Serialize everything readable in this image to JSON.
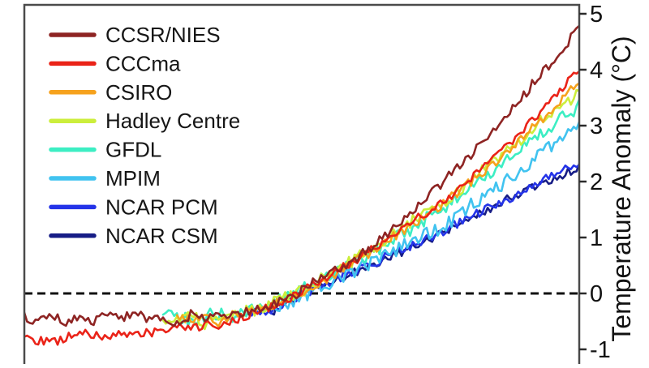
{
  "chart": {
    "background": "#ffffff",
    "frame_color": "#4a4a4a",
    "zero_line_color": "#111111",
    "text_color": "#111111"
  },
  "chart_data": {
    "type": "line",
    "title": "",
    "xlabel": "",
    "ylabel": "Temperature Anomaly (°C)",
    "x_unit": "year",
    "x_range": [
      1900,
      2100
    ],
    "ylim": [
      -1.3,
      5.16
    ],
    "y_ticks": [
      5,
      4,
      3,
      2,
      1,
      0,
      -1
    ],
    "grid": false,
    "zero_line": {
      "style": "dashed",
      "y": 0
    },
    "legend_position": "top-left",
    "point_interval_years": 5,
    "series": [
      {
        "name": "CCSR/NIES",
        "color": "#8E2423",
        "start_year": 1900,
        "end_year": 2100,
        "seed": 7,
        "noise_amplitude": 0.09,
        "values": [
          -0.42,
          -0.52,
          -0.38,
          -0.55,
          -0.42,
          -0.5,
          -0.35,
          -0.48,
          -0.32,
          -0.45,
          -0.4,
          -0.52,
          -0.38,
          -0.45,
          -0.35,
          -0.42,
          -0.3,
          -0.28,
          -0.18,
          -0.1,
          0.05,
          0.22,
          0.38,
          0.5,
          0.65,
          0.82,
          1.05,
          1.25,
          1.5,
          1.72,
          1.95,
          2.2,
          2.45,
          2.68,
          2.95,
          3.25,
          3.55,
          3.85,
          4.15,
          4.45,
          4.75
        ]
      },
      {
        "name": "CCCma",
        "color": "#EA2318",
        "start_year": 1900,
        "end_year": 2100,
        "seed": 13,
        "noise_amplitude": 0.08,
        "values": [
          -0.72,
          -0.85,
          -0.88,
          -0.8,
          -0.7,
          -0.72,
          -0.78,
          -0.7,
          -0.75,
          -0.68,
          -0.72,
          -0.6,
          -0.65,
          -0.55,
          -0.6,
          -0.5,
          -0.4,
          -0.32,
          -0.22,
          -0.12,
          0.02,
          0.18,
          0.32,
          0.48,
          0.62,
          0.78,
          0.95,
          1.12,
          1.28,
          1.45,
          1.6,
          1.8,
          2.0,
          2.22,
          2.45,
          2.7,
          2.95,
          3.2,
          3.48,
          3.75,
          4.0
        ]
      },
      {
        "name": "CSIRO",
        "color": "#F6A21D",
        "start_year": 1955,
        "end_year": 2100,
        "seed": 3,
        "noise_amplitude": 0.09,
        "values": [
          -0.42,
          -0.48,
          -0.42,
          -0.5,
          -0.4,
          -0.35,
          -0.28,
          -0.2,
          -0.1,
          0.0,
          0.15,
          0.3,
          0.45,
          0.6,
          0.75,
          0.9,
          1.08,
          1.25,
          1.42,
          1.58,
          1.75,
          1.95,
          2.15,
          2.35,
          2.58,
          2.8,
          3.05,
          3.3,
          3.55,
          3.8
        ]
      },
      {
        "name": "Hadley Centre",
        "color": "#CCEE3C",
        "start_year": 1950,
        "end_year": 2100,
        "seed": 11,
        "noise_amplitude": 0.12,
        "values": [
          -0.42,
          -0.5,
          -0.38,
          -0.52,
          -0.45,
          -0.38,
          -0.32,
          -0.25,
          -0.15,
          -0.08,
          0.05,
          0.18,
          0.35,
          0.5,
          0.62,
          0.8,
          0.95,
          1.1,
          1.3,
          1.45,
          1.6,
          1.78,
          1.95,
          2.18,
          2.4,
          2.6,
          2.82,
          3.05,
          3.25,
          3.45,
          3.55
        ]
      },
      {
        "name": "GFDL",
        "color": "#3CEEC3",
        "start_year": 1950,
        "end_year": 2100,
        "seed": 5,
        "noise_amplitude": 0.12,
        "values": [
          -0.35,
          -0.4,
          -0.5,
          -0.42,
          -0.35,
          -0.45,
          -0.3,
          -0.22,
          -0.12,
          -0.05,
          0.08,
          0.2,
          0.35,
          0.48,
          0.6,
          0.72,
          0.88,
          1.02,
          1.18,
          1.35,
          1.5,
          1.68,
          1.85,
          2.05,
          2.25,
          2.45,
          2.62,
          2.82,
          3.0,
          3.18,
          3.35
        ]
      },
      {
        "name": "MPIM",
        "color": "#41C3F0",
        "start_year": 1990,
        "end_year": 2100,
        "seed": 9,
        "noise_amplitude": 0.13,
        "values": [
          -0.25,
          -0.18,
          -0.05,
          0.08,
          0.2,
          0.3,
          0.42,
          0.55,
          0.68,
          0.82,
          0.95,
          1.05,
          1.18,
          1.35,
          1.55,
          1.72,
          1.88,
          2.05,
          2.25,
          2.45,
          2.65,
          2.85,
          3.0
        ]
      },
      {
        "name": "NCAR PCM",
        "color": "#2433E8",
        "start_year": 1980,
        "end_year": 2100,
        "seed": 2,
        "noise_amplitude": 0.09,
        "values": [
          -0.32,
          -0.38,
          -0.25,
          -0.15,
          -0.02,
          0.1,
          0.22,
          0.32,
          0.42,
          0.52,
          0.65,
          0.78,
          0.88,
          1.0,
          1.1,
          1.22,
          1.35,
          1.48,
          1.6,
          1.72,
          1.85,
          1.98,
          2.1,
          2.2,
          2.3
        ]
      },
      {
        "name": "NCAR CSM",
        "color": "#171D86",
        "start_year": 1985,
        "end_year": 2100,
        "seed": 4,
        "noise_amplitude": 0.08,
        "values": [
          -0.25,
          -0.3,
          -0.12,
          0.0,
          0.12,
          0.2,
          0.3,
          0.4,
          0.5,
          0.62,
          0.72,
          0.85,
          0.95,
          1.08,
          1.2,
          1.32,
          1.45,
          1.58,
          1.7,
          1.82,
          1.95,
          2.05,
          2.15,
          2.25
        ]
      }
    ]
  }
}
